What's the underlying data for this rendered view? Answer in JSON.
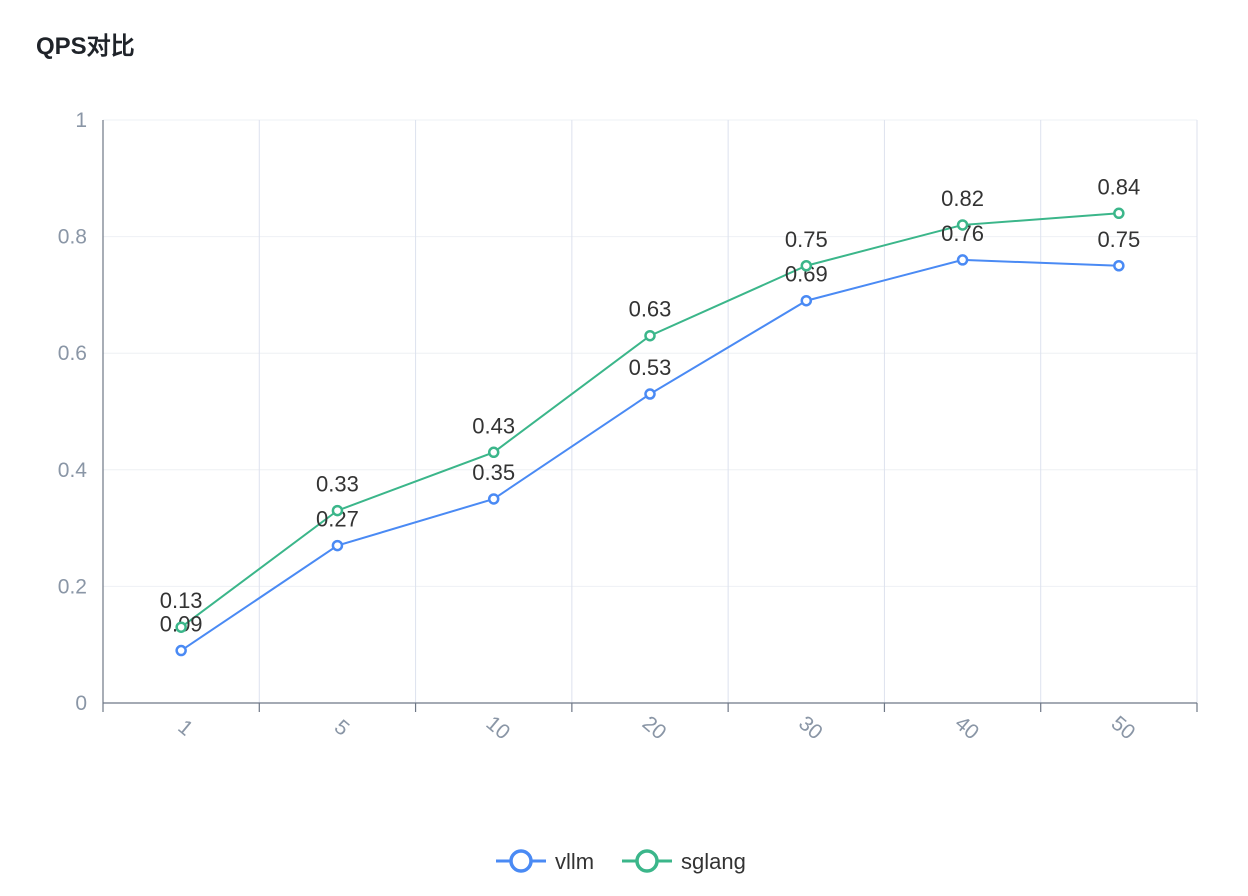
{
  "chart_data": {
    "type": "line",
    "title": "QPS对比",
    "xlabel": "",
    "ylabel": "",
    "categories": [
      "1",
      "5",
      "10",
      "20",
      "30",
      "40",
      "50"
    ],
    "ylim": [
      0,
      1
    ],
    "yticks": [
      "0",
      "0.2",
      "0.4",
      "0.6",
      "0.8",
      "1"
    ],
    "grid": true,
    "legend_position": "bottom-center",
    "series": [
      {
        "name": "vllm",
        "color": "#4a8af4",
        "values": [
          0.09,
          0.27,
          0.35,
          0.53,
          0.69,
          0.76,
          0.75
        ]
      },
      {
        "name": "sglang",
        "color": "#3bb68a",
        "values": [
          0.13,
          0.33,
          0.43,
          0.63,
          0.75,
          0.82,
          0.84
        ]
      }
    ]
  }
}
